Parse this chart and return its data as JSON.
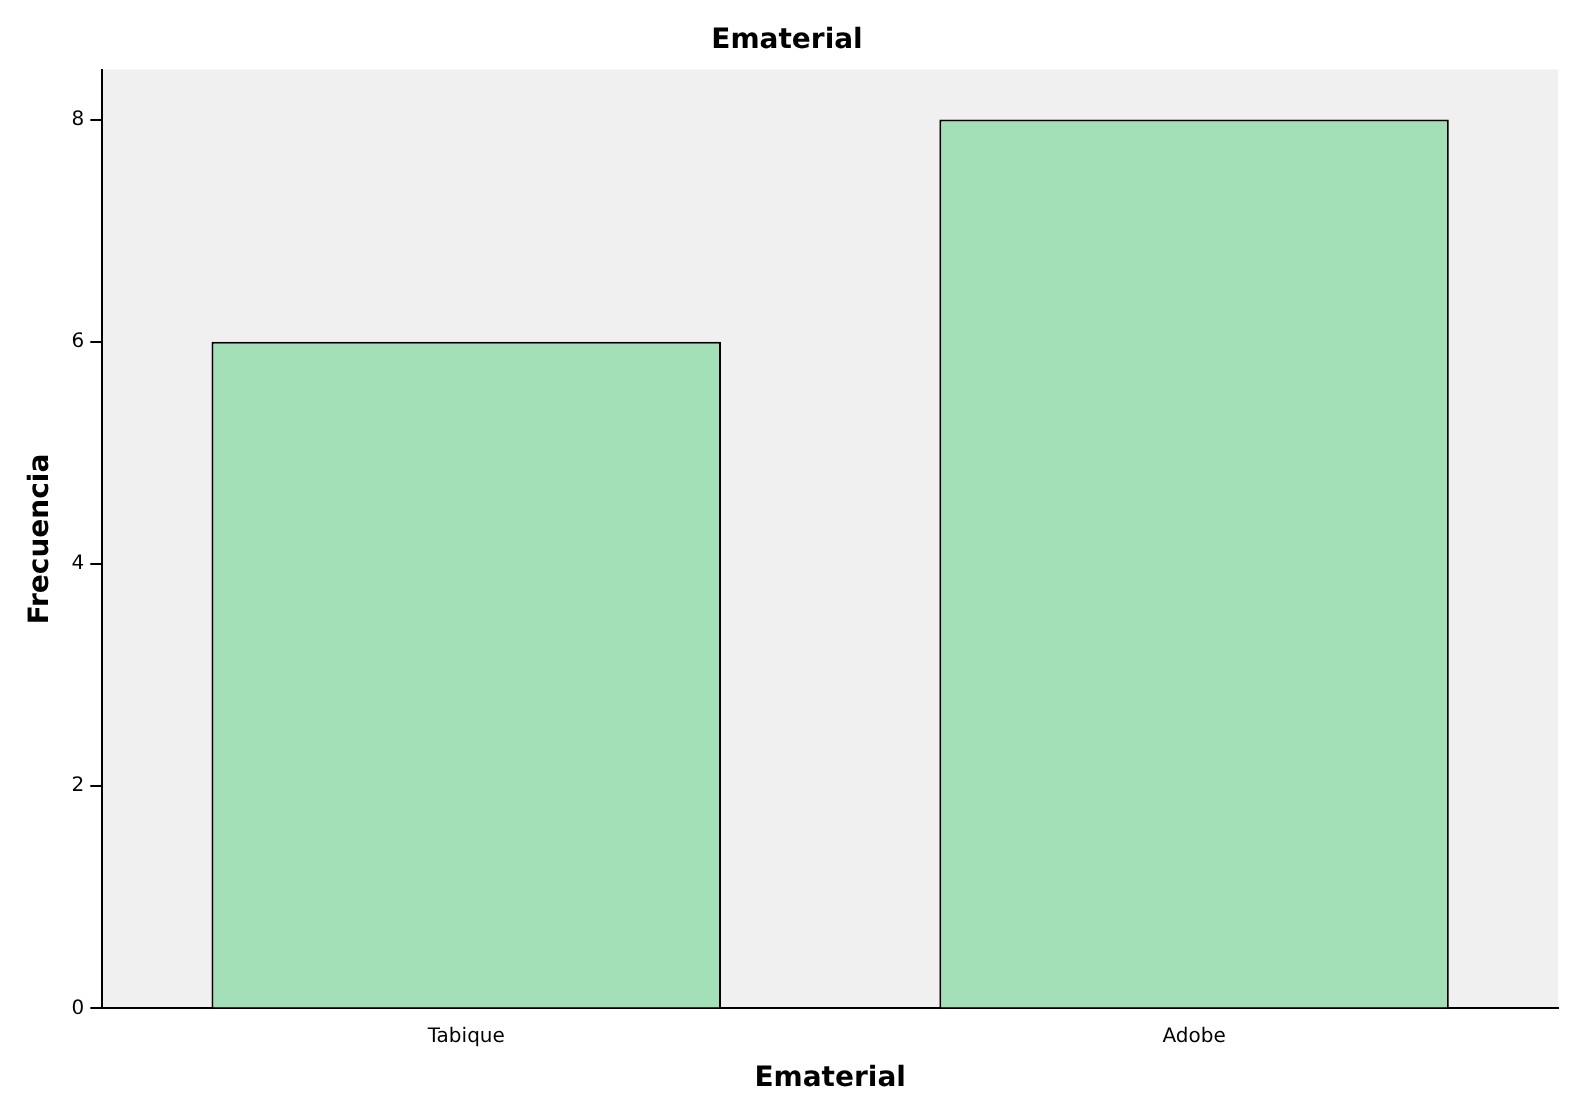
{
  "chart_data": {
    "type": "bar",
    "title": "Ematerial",
    "xlabel": "Ematerial",
    "ylabel": "Frecuencia",
    "categories": [
      "Tabique",
      "Adobe"
    ],
    "values": [
      6,
      8
    ],
    "color": "#a3e0b8",
    "ylim": [
      0,
      8.45
    ],
    "yticks": [
      0,
      2,
      4,
      6,
      8
    ],
    "grid": false,
    "legend": false
  }
}
